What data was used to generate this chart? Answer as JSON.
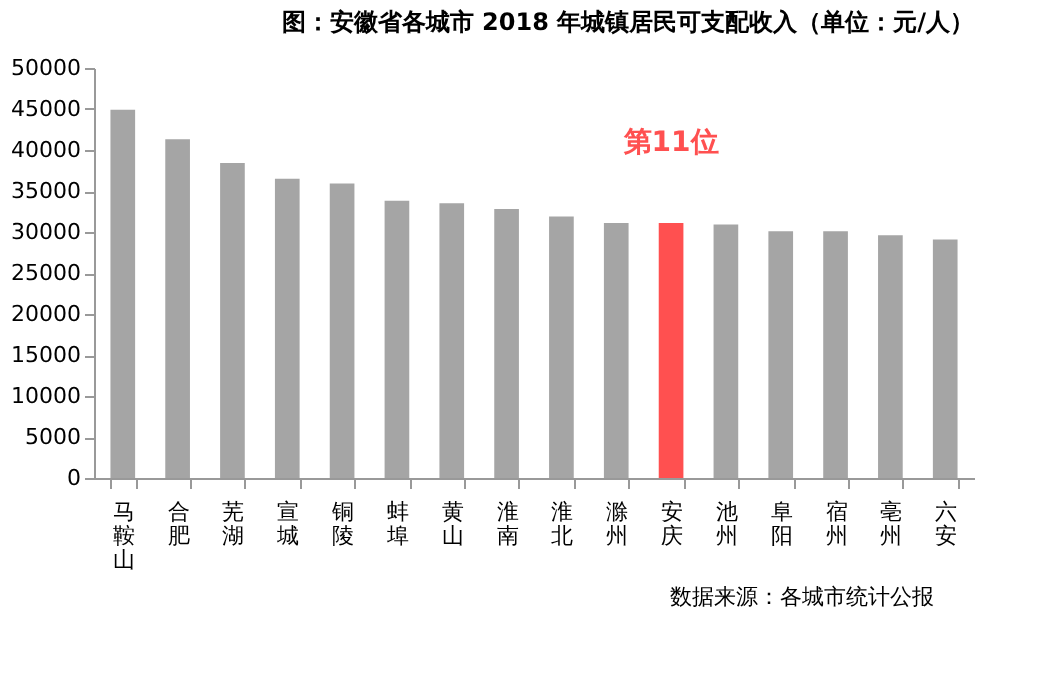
{
  "chart_data": {
    "type": "bar",
    "title": "图：安徽省各城市 2018 年城镇居民可支配收入（单位：元/人）",
    "categories": [
      "马鞍山",
      "合肥",
      "芜湖",
      "宣城",
      "铜陵",
      "蚌埠",
      "黄山",
      "淮南",
      "淮北",
      "滁州",
      "安庆",
      "池州",
      "阜阳",
      "宿州",
      "亳州",
      "六安"
    ],
    "values": [
      44900,
      41300,
      38400,
      36500,
      35900,
      33800,
      33500,
      32800,
      31900,
      31100,
      31100,
      30900,
      30100,
      30100,
      29600,
      29100
    ],
    "colors": [
      "#a5a5a5",
      "#a5a5a5",
      "#a5a5a5",
      "#a5a5a5",
      "#a5a5a5",
      "#a5a5a5",
      "#a5a5a5",
      "#a5a5a5",
      "#a5a5a5",
      "#a5a5a5",
      "#ff5050",
      "#a5a5a5",
      "#a5a5a5",
      "#a5a5a5",
      "#a5a5a5",
      "#a5a5a5"
    ],
    "ylim": [
      0,
      50000
    ],
    "yticks": [
      0,
      5000,
      10000,
      15000,
      20000,
      25000,
      30000,
      35000,
      40000,
      45000,
      50000
    ],
    "grid": false,
    "annotations": [
      {
        "text": "第11位",
        "x": "安庆",
        "y": 31100
      },
      "数据来源：各城市统计公报"
    ]
  }
}
